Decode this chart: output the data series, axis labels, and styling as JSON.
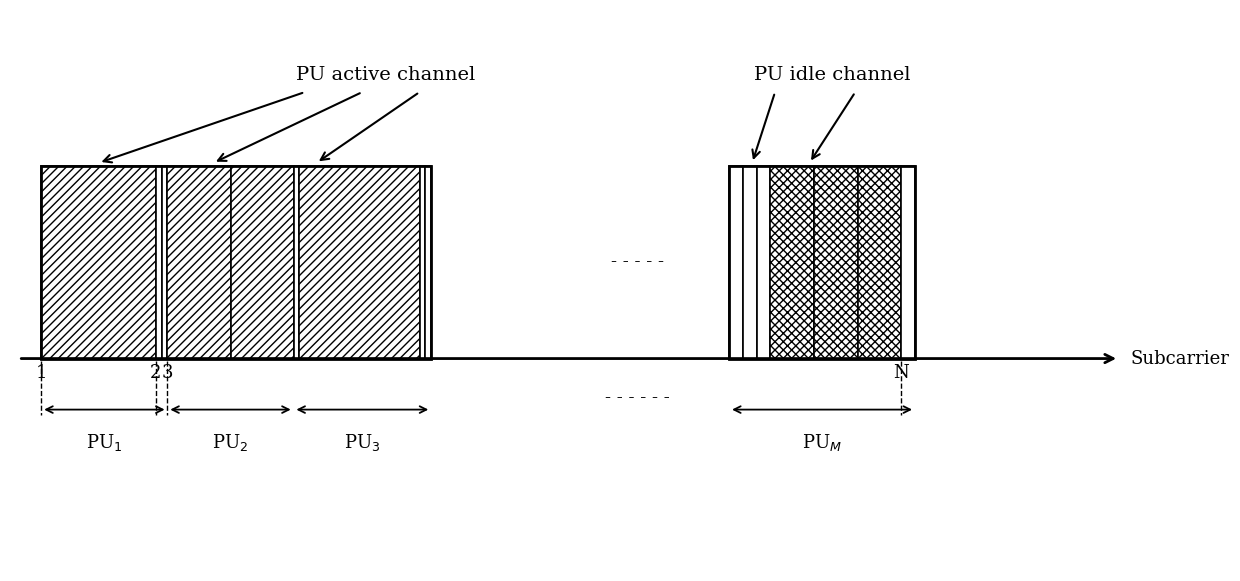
{
  "fig_width": 12.4,
  "fig_height": 5.81,
  "bg_color": "#ffffff",
  "label_active": "PU active channel",
  "label_idle": "PU idle channel",
  "label_subcarrier": "Subcarrier",
  "dots_mid": "- - - - -",
  "dots_bottom": "- - - - - -",
  "title_fontsize": 14,
  "tick_fontsize": 13,
  "pu_fontsize": 13
}
